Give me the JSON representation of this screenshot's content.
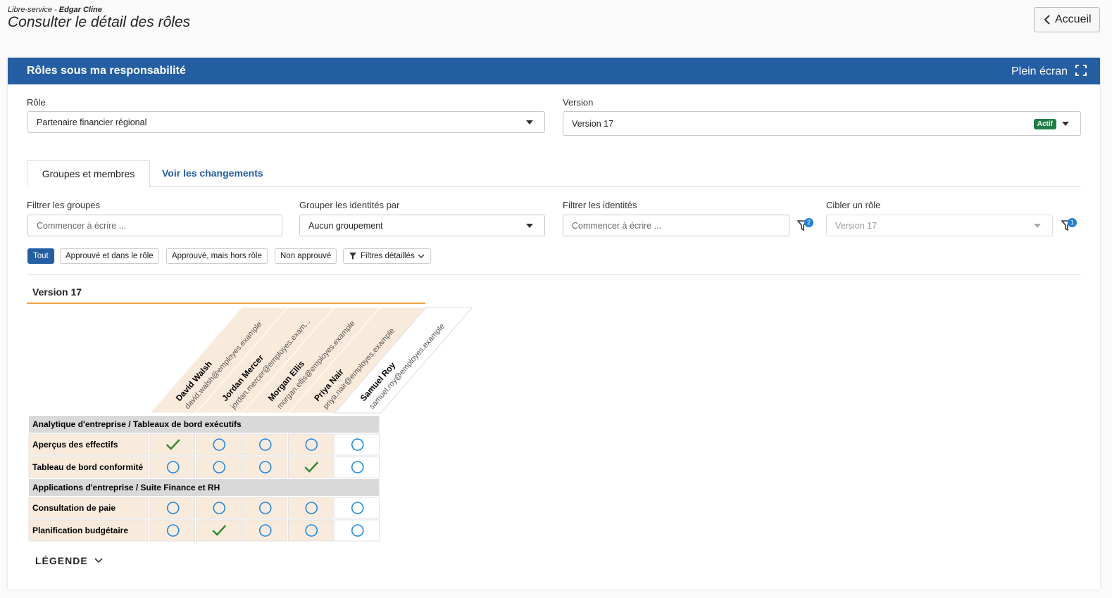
{
  "header": {
    "breadcrumb_prefix": "Libre-service -",
    "breadcrumb_user": "Edgar Cline",
    "title": "Consulter le détail des rôles",
    "home_button": "Accueil"
  },
  "panel": {
    "title": "Rôles sous ma responsabilité",
    "fullscreen": "Plein écran"
  },
  "role_field": {
    "label": "Rôle",
    "value": "Partenaire financier régional"
  },
  "version_field": {
    "label": "Version",
    "value": "Version 17",
    "badge": "Actif"
  },
  "tabs": [
    "Groupes et membres",
    "Voir les changements"
  ],
  "filters": [
    {
      "label": "Filtrer les groupes",
      "placeholder": "Commencer à écrire ..."
    },
    {
      "label": "Grouper les identités par",
      "value": "Aucun groupement"
    },
    {
      "label": "Filtrer les identités",
      "placeholder": "Commencer à écrire ...",
      "badge": 2
    },
    {
      "label": "Cibler un rôle",
      "value": "Version 17",
      "badge": 1
    }
  ],
  "chips": [
    "Tout",
    "Approuvé et dans le rôle",
    "Approuvé, mais hors rôle",
    "Non approuvé"
  ],
  "detailed_filters": "Filtres détaillés",
  "matrix": {
    "title": "Version 17",
    "members": [
      {
        "name": "David Walsh",
        "email": "david.walsh@employes.example",
        "in_role": true
      },
      {
        "name": "Jordan Mercer",
        "email": "jordan.mercer@employes.exam...",
        "in_role": true
      },
      {
        "name": "Morgan Ellis",
        "email": "morgan.ellis@employes.example",
        "in_role": true
      },
      {
        "name": "Priya Nair",
        "email": "priya.nair@employes.example",
        "in_role": true
      },
      {
        "name": "Samuel Roy",
        "email": "samuel.roy@employes.example",
        "in_role": false
      }
    ],
    "groups": [
      {
        "name": "Analytique d'entreprise / Tableaux de bord exécutifs",
        "rows": [
          {
            "label": "Aperçus des effectifs",
            "cells": [
              "approved",
              "open",
              "open",
              "open",
              "open"
            ]
          },
          {
            "label": "Tableau de bord conformité",
            "cells": [
              "open",
              "open",
              "open",
              "approved",
              "open"
            ]
          }
        ]
      },
      {
        "name": "Applications d'entreprise / Suite Finance et RH",
        "rows": [
          {
            "label": "Consultation de paie",
            "cells": [
              "open",
              "open",
              "open",
              "open",
              "open"
            ]
          },
          {
            "label": "Planification budgétaire",
            "cells": [
              "open",
              "approved",
              "open",
              "open",
              "open"
            ]
          }
        ]
      }
    ]
  },
  "legend": "LÉGENDE"
}
